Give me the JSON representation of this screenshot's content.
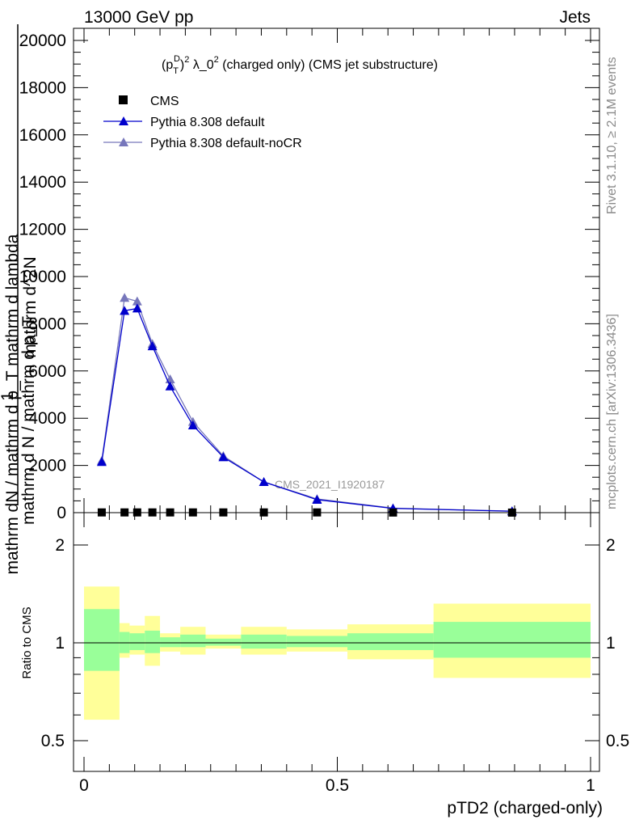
{
  "header": {
    "left": "13000 GeV pp",
    "right": "Jets"
  },
  "side_labels": {
    "rivet": "Rivet 3.1.10, ≥ 2.1M events",
    "mcplots": "mcplots.cern.ch [arXiv:1306.3436]"
  },
  "watermark": "CMS_2021_I1920187",
  "main_plot": {
    "title": "(p_T^D)^2 λ_0^2 (charged only) (CMS jet substructure)",
    "title_parts": {
      "a": "(p",
      "b": "T",
      "c": "D",
      "d": ")",
      "e": "2",
      "f": " λ_0",
      "g": "2",
      "h": " (charged only) (CMS jet substructure)"
    },
    "ylabel_garbled_1": "mathrm dN / mathrm d p_T mathrm d lambda",
    "ylabel_garbled_2": "mathrm d^2N",
    "ylabel_one": "1",
    "ylabel_garbled_3": "mathrm d N / mathrm d p_T",
    "yticks": [
      "0",
      "2000",
      "4000",
      "6000",
      "8000",
      "10000",
      "12000",
      "14000",
      "16000",
      "18000",
      "20000"
    ]
  },
  "ratio_plot": {
    "ylabel": "Ratio to CMS",
    "yticks": [
      "0.5",
      "1",
      "2"
    ],
    "xlabel": "pTD2 (charged-only)",
    "xticks": [
      "0",
      "0.5",
      "1"
    ]
  },
  "chart_data": {
    "type": "line",
    "xlim": [
      0,
      1
    ],
    "ylim": [
      0,
      20000
    ],
    "ratio_ylim": [
      0.4,
      2.3
    ],
    "ratio_scale": "log",
    "legend_position": "top-left",
    "colors": {
      "cms": "#000000",
      "default": "#0000cc",
      "noCR": "#7777bb",
      "band_inner": "#99ff99",
      "band_outer": "#ffff99"
    },
    "series": [
      {
        "name": "CMS",
        "marker": "square",
        "x": [
          0.035,
          0.08,
          0.105,
          0.135,
          0.17,
          0.215,
          0.275,
          0.355,
          0.46,
          0.61,
          0.845
        ],
        "y": [
          10,
          10,
          10,
          10,
          10,
          10,
          10,
          10,
          10,
          5,
          2
        ]
      },
      {
        "name": "Pythia 8.308 default",
        "marker": "triangle",
        "x": [
          0.035,
          0.08,
          0.105,
          0.135,
          0.17,
          0.215,
          0.275,
          0.355,
          0.46,
          0.61,
          0.845
        ],
        "y": [
          2150,
          8550,
          8650,
          7050,
          5350,
          3700,
          2350,
          1300,
          550,
          180,
          60
        ]
      },
      {
        "name": "Pythia 8.308 default-noCR",
        "marker": "triangle",
        "x": [
          0.035,
          0.08,
          0.105,
          0.135,
          0.17,
          0.215,
          0.275,
          0.355,
          0.46,
          0.61,
          0.845
        ],
        "y": [
          2200,
          9100,
          8950,
          7150,
          5650,
          3850,
          2400,
          1300,
          580,
          190,
          65
        ]
      }
    ],
    "ratio_bands": [
      {
        "x0": 0.0,
        "x1": 0.07,
        "inner": [
          0.82,
          1.27
        ],
        "outer": [
          0.58,
          1.49
        ]
      },
      {
        "x0": 0.07,
        "x1": 0.09,
        "inner": [
          0.93,
          1.08
        ],
        "outer": [
          0.9,
          1.15
        ]
      },
      {
        "x0": 0.09,
        "x1": 0.12,
        "inner": [
          0.95,
          1.07
        ],
        "outer": [
          0.92,
          1.13
        ]
      },
      {
        "x0": 0.12,
        "x1": 0.15,
        "inner": [
          0.93,
          1.09
        ],
        "outer": [
          0.85,
          1.21
        ]
      },
      {
        "x0": 0.15,
        "x1": 0.19,
        "inner": [
          0.97,
          1.04
        ],
        "outer": [
          0.94,
          1.07
        ]
      },
      {
        "x0": 0.19,
        "x1": 0.24,
        "inner": [
          0.97,
          1.06
        ],
        "outer": [
          0.92,
          1.12
        ]
      },
      {
        "x0": 0.24,
        "x1": 0.31,
        "inner": [
          0.98,
          1.03
        ],
        "outer": [
          0.96,
          1.06
        ]
      },
      {
        "x0": 0.31,
        "x1": 0.4,
        "inner": [
          0.96,
          1.06
        ],
        "outer": [
          0.92,
          1.12
        ]
      },
      {
        "x0": 0.4,
        "x1": 0.52,
        "inner": [
          0.97,
          1.05
        ],
        "outer": [
          0.94,
          1.1
        ]
      },
      {
        "x0": 0.52,
        "x1": 0.69,
        "inner": [
          0.95,
          1.07
        ],
        "outer": [
          0.89,
          1.14
        ]
      },
      {
        "x0": 0.69,
        "x1": 1.0,
        "inner": [
          0.9,
          1.16
        ],
        "outer": [
          0.78,
          1.32
        ]
      }
    ]
  }
}
